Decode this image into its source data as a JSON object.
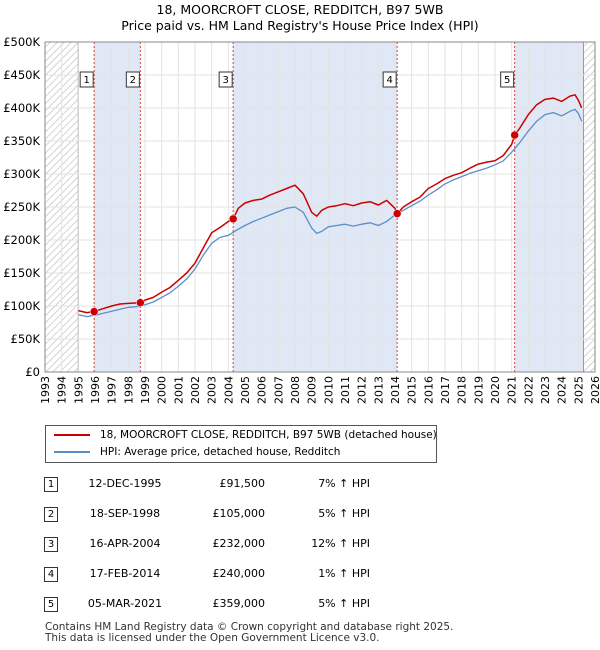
{
  "chart_data": {
    "type": "line",
    "title": "18, MOORCROFT CLOSE, REDDITCH, B97 5WB",
    "subtitle": "Price paid vs. HM Land Registry's House Price Index (HPI)",
    "xlim": [
      1993,
      2026
    ],
    "ylim": [
      0,
      500000
    ],
    "x_ticks": [
      1993,
      1994,
      1995,
      1996,
      1997,
      1998,
      1999,
      2000,
      2001,
      2002,
      2003,
      2004,
      2005,
      2006,
      2007,
      2008,
      2009,
      2010,
      2011,
      2012,
      2013,
      2014,
      2015,
      2016,
      2017,
      2018,
      2019,
      2020,
      2021,
      2022,
      2023,
      2024,
      2025,
      2026
    ],
    "x_tick_labels": [
      "1993",
      "1994",
      "1995",
      "1996",
      "1997",
      "1998",
      "1999",
      "2000",
      "2001",
      "2002",
      "2003",
      "2004",
      "2005",
      "2006",
      "2007",
      "2008",
      "2009",
      "2010",
      "2011",
      "2012",
      "2013",
      "2014",
      "2015",
      "2016",
      "2017",
      "2018",
      "2019",
      "2020",
      "2021",
      "2022",
      "2023",
      "2024",
      "2025",
      "2026"
    ],
    "y_ticks": [
      0,
      50000,
      100000,
      150000,
      200000,
      250000,
      300000,
      350000,
      400000,
      450000,
      500000
    ],
    "y_tick_labels": [
      "£0",
      "£50K",
      "£100K",
      "£150K",
      "£200K",
      "£250K",
      "£300K",
      "£350K",
      "£400K",
      "£450K",
      "£500K"
    ],
    "data_range": [
      1995.0,
      2025.3
    ],
    "hatched_before": 1995.0,
    "hatched_after": 2025.3,
    "series": [
      {
        "name": "18, MOORCROFT CLOSE, REDDITCH, B97 5WB (detached house)",
        "color": "#cc0000",
        "x": [
          1995.0,
          1995.5,
          1995.95,
          1996.5,
          1997.0,
          1997.5,
          1998.0,
          1998.72,
          1999.0,
          1999.5,
          2000.0,
          2000.5,
          2001.0,
          2001.5,
          2002.0,
          2002.5,
          2003.0,
          2003.5,
          2004.0,
          2004.29,
          2004.6,
          2005.0,
          2005.5,
          2006.0,
          2006.5,
          2007.0,
          2007.5,
          2008.0,
          2008.5,
          2009.0,
          2009.3,
          2009.6,
          2010.0,
          2010.5,
          2011.0,
          2011.5,
          2012.0,
          2012.5,
          2013.0,
          2013.5,
          2014.0,
          2014.13,
          2014.5,
          2015.0,
          2015.5,
          2016.0,
          2016.5,
          2017.0,
          2017.5,
          2018.0,
          2018.5,
          2019.0,
          2019.5,
          2020.0,
          2020.5,
          2021.0,
          2021.18,
          2021.5,
          2022.0,
          2022.5,
          2023.0,
          2023.5,
          2024.0,
          2024.5,
          2024.8,
          2025.0,
          2025.2
        ],
        "y": [
          93000,
          90000,
          91500,
          96000,
          100000,
          103000,
          104000,
          105000,
          109000,
          113000,
          121000,
          128000,
          139000,
          150000,
          165000,
          188000,
          211000,
          219000,
          228000,
          232000,
          248000,
          256000,
          260000,
          262000,
          268000,
          273000,
          278000,
          283000,
          270000,
          242000,
          236000,
          245000,
          250000,
          252000,
          255000,
          252000,
          256000,
          258000,
          253000,
          260000,
          248000,
          240000,
          250000,
          258000,
          265000,
          278000,
          285000,
          293000,
          298000,
          302000,
          309000,
          315000,
          318000,
          320000,
          328000,
          345000,
          359000,
          370000,
          390000,
          405000,
          413000,
          415000,
          410000,
          418000,
          420000,
          412000,
          400000
        ]
      },
      {
        "name": "HPI: Average price, detached house, Redditch",
        "color": "#5b8fc7",
        "x": [
          1995.0,
          1995.5,
          1996.0,
          1996.5,
          1997.0,
          1997.5,
          1998.0,
          1998.5,
          1999.0,
          1999.5,
          2000.0,
          2000.5,
          2001.0,
          2001.5,
          2002.0,
          2002.5,
          2003.0,
          2003.5,
          2004.0,
          2004.5,
          2005.0,
          2005.5,
          2006.0,
          2006.5,
          2007.0,
          2007.5,
          2008.0,
          2008.5,
          2009.0,
          2009.3,
          2009.6,
          2010.0,
          2010.5,
          2011.0,
          2011.5,
          2012.0,
          2012.5,
          2013.0,
          2013.5,
          2014.0,
          2014.5,
          2015.0,
          2015.5,
          2016.0,
          2016.5,
          2017.0,
          2017.5,
          2018.0,
          2018.5,
          2019.0,
          2019.5,
          2020.0,
          2020.5,
          2021.0,
          2021.5,
          2022.0,
          2022.5,
          2023.0,
          2023.5,
          2024.0,
          2024.5,
          2024.8,
          2025.0,
          2025.2
        ],
        "y": [
          87000,
          84000,
          86000,
          89000,
          92000,
          95000,
          98000,
          99000,
          102000,
          106000,
          113000,
          120000,
          130000,
          141000,
          156000,
          177000,
          195000,
          204000,
          207000,
          215000,
          222000,
          228000,
          233000,
          238000,
          243000,
          248000,
          250000,
          242000,
          218000,
          210000,
          213000,
          220000,
          222000,
          224000,
          221000,
          224000,
          226000,
          222000,
          228000,
          238000,
          245000,
          252000,
          259000,
          268000,
          276000,
          285000,
          291000,
          296000,
          301000,
          305000,
          309000,
          314000,
          320000,
          333000,
          348000,
          365000,
          380000,
          390000,
          393000,
          388000,
          395000,
          398000,
          392000,
          380000
        ]
      }
    ],
    "sales": [
      {
        "num": "1",
        "date": "12-DEC-1995",
        "year": 1995.95,
        "price": 91500,
        "price_label": "£91,500",
        "hpi": "7% ↑ HPI"
      },
      {
        "num": "2",
        "date": "18-SEP-1998",
        "year": 1998.72,
        "price": 105000,
        "price_label": "£105,000",
        "hpi": "5% ↑ HPI"
      },
      {
        "num": "3",
        "date": "16-APR-2004",
        "year": 2004.29,
        "price": 232000,
        "price_label": "£232,000",
        "hpi": "12% ↑ HPI"
      },
      {
        "num": "4",
        "date": "17-FEB-2014",
        "year": 2014.13,
        "price": 240000,
        "price_label": "£240,000",
        "hpi": "1% ↑ HPI"
      },
      {
        "num": "5",
        "date": "05-MAR-2021",
        "year": 2021.18,
        "price": 359000,
        "price_label": "£359,000",
        "hpi": "5% ↑ HPI"
      }
    ]
  },
  "legend": {
    "property_label": "18, MOORCROFT CLOSE, REDDITCH, B97 5WB (detached house)",
    "hpi_label": "HPI: Average price, detached house, Redditch"
  },
  "colors": {
    "property": "#cc0000",
    "hpi": "#5b8fc7",
    "shade": "#dde6f4",
    "hatch": "#b0b0b0",
    "vline": "#d04040"
  },
  "footer": {
    "line1": "Contains HM Land Registry data © Crown copyright and database right 2025.",
    "line2": "This data is licensed under the Open Government Licence v3.0."
  }
}
